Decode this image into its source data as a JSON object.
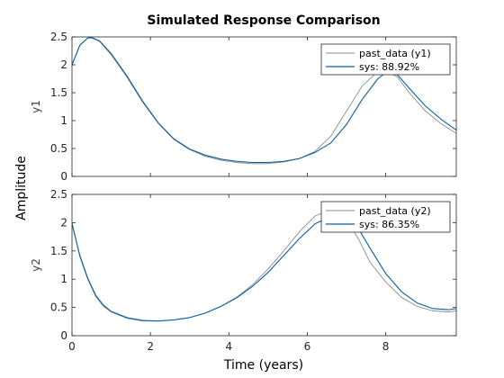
{
  "figure": {
    "title": "Simulated Response Comparison",
    "xlabel": "Time (years)",
    "ylabel": "Amplitude"
  },
  "colors": {
    "measured": "#8c8c8c",
    "model": "#0b5fa0",
    "axes": "#262626",
    "grid_tick": "#262626",
    "background": "#ffffff"
  },
  "chart_data": [
    {
      "type": "line",
      "ylabel": "y1",
      "xlabel": "",
      "xlim": [
        0,
        9.8
      ],
      "ylim": [
        0,
        2.5
      ],
      "xticks": [
        0,
        2,
        4,
        6,
        8
      ],
      "xtick_labels": [
        "",
        "",
        "",
        "",
        ""
      ],
      "yticks": [
        0,
        0.5,
        1,
        1.5,
        2,
        2.5
      ],
      "ytick_labels": [
        "0",
        "0.5",
        "1",
        "1.5",
        "2",
        "2.5"
      ],
      "legend_position": "top-right",
      "grid": false,
      "series": [
        {
          "name": "past_data (y1)",
          "color_key": "measured",
          "x": [
            0,
            0.2,
            0.4,
            0.5,
            0.7,
            1.0,
            1.4,
            1.8,
            2.2,
            2.6,
            3.0,
            3.4,
            3.8,
            4.2,
            4.6,
            5.0,
            5.4,
            5.8,
            6.2,
            6.6,
            7.0,
            7.4,
            7.8,
            8.0,
            8.3,
            8.6,
            9.0,
            9.4,
            9.8
          ],
          "y": [
            2.0,
            2.35,
            2.48,
            2.48,
            2.42,
            2.18,
            1.78,
            1.33,
            0.95,
            0.66,
            0.48,
            0.36,
            0.29,
            0.25,
            0.23,
            0.23,
            0.26,
            0.32,
            0.45,
            0.72,
            1.17,
            1.62,
            1.88,
            1.9,
            1.78,
            1.5,
            1.18,
            0.95,
            0.77
          ]
        },
        {
          "name": "sys: 88.92%",
          "color_key": "model",
          "x": [
            0,
            0.2,
            0.4,
            0.5,
            0.7,
            1.0,
            1.4,
            1.8,
            2.2,
            2.6,
            3.0,
            3.4,
            3.8,
            4.2,
            4.6,
            5.0,
            5.4,
            5.8,
            6.2,
            6.6,
            7.0,
            7.4,
            7.8,
            8.0,
            8.3,
            8.6,
            9.0,
            9.4,
            9.8
          ],
          "y": [
            2.0,
            2.35,
            2.48,
            2.49,
            2.43,
            2.2,
            1.8,
            1.35,
            0.96,
            0.67,
            0.49,
            0.38,
            0.31,
            0.27,
            0.25,
            0.25,
            0.27,
            0.32,
            0.43,
            0.6,
            0.93,
            1.38,
            1.75,
            1.86,
            1.82,
            1.58,
            1.27,
            1.03,
            0.83
          ]
        }
      ]
    },
    {
      "type": "line",
      "ylabel": "y2",
      "xlabel": "Time (years)",
      "xlim": [
        0,
        9.8
      ],
      "ylim": [
        0,
        2.5
      ],
      "xticks": [
        0,
        2,
        4,
        6,
        8
      ],
      "xtick_labels": [
        "0",
        "2",
        "4",
        "6",
        "8"
      ],
      "yticks": [
        0,
        0.5,
        1,
        1.5,
        2,
        2.5
      ],
      "ytick_labels": [
        "0",
        "0.5",
        "1",
        "1.5",
        "2",
        "2.5"
      ],
      "legend_position": "top-right",
      "grid": false,
      "series": [
        {
          "name": "past_data (y2)",
          "color_key": "measured",
          "x": [
            0,
            0.2,
            0.4,
            0.6,
            0.8,
            1.0,
            1.4,
            1.8,
            2.2,
            2.6,
            3.0,
            3.4,
            3.8,
            4.2,
            4.6,
            5.0,
            5.4,
            5.8,
            6.2,
            6.5,
            6.8,
            7.0,
            7.3,
            7.6,
            8.0,
            8.4,
            8.8,
            9.2,
            9.6,
            9.8
          ],
          "y": [
            2.0,
            1.4,
            1.0,
            0.7,
            0.52,
            0.42,
            0.31,
            0.26,
            0.26,
            0.28,
            0.32,
            0.4,
            0.52,
            0.68,
            0.9,
            1.18,
            1.5,
            1.84,
            2.12,
            2.2,
            2.15,
            2.05,
            1.72,
            1.3,
            0.95,
            0.68,
            0.52,
            0.44,
            0.42,
            0.44
          ]
        },
        {
          "name": "sys: 86.35%",
          "color_key": "model",
          "x": [
            0,
            0.2,
            0.4,
            0.6,
            0.8,
            1.0,
            1.4,
            1.8,
            2.2,
            2.6,
            3.0,
            3.4,
            3.8,
            4.2,
            4.6,
            5.0,
            5.4,
            5.8,
            6.2,
            6.5,
            6.8,
            7.0,
            7.3,
            7.6,
            8.0,
            8.4,
            8.8,
            9.2,
            9.6,
            9.8
          ],
          "y": [
            1.98,
            1.42,
            1.02,
            0.72,
            0.54,
            0.43,
            0.32,
            0.27,
            0.26,
            0.28,
            0.32,
            0.4,
            0.52,
            0.67,
            0.87,
            1.12,
            1.42,
            1.72,
            1.98,
            2.08,
            2.12,
            2.1,
            1.9,
            1.55,
            1.1,
            0.78,
            0.58,
            0.48,
            0.46,
            0.48
          ]
        }
      ]
    }
  ]
}
